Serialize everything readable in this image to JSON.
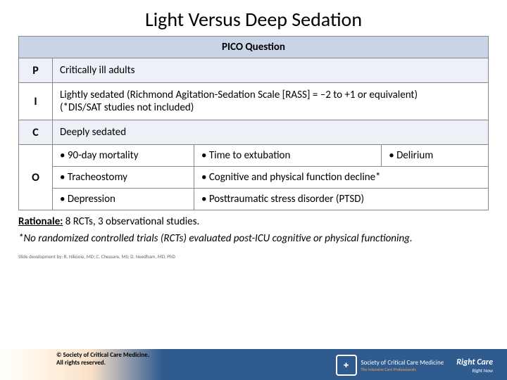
{
  "title": "Light Versus Deep Sedation",
  "table": {
    "header": "PICO Question",
    "rows": {
      "P": {
        "letter": "P",
        "text": "Critically ill adults"
      },
      "I": {
        "letter": "I",
        "text": "Lightly sedated (Richmond Agitation-Sedation Scale [RASS] = –2 to +1 or equivalent)\n(*DIS/SAT studies not included)"
      },
      "C": {
        "letter": "C",
        "text": "Deeply sedated"
      },
      "O": {
        "letter": "O",
        "grid": [
          [
            "90-day mortality",
            "Time to extubation",
            "Delirium"
          ],
          [
            "Tracheostomy",
            "Cognitive and physical function decline*",
            ""
          ],
          [
            "Depression",
            "Posttraumatic stress disorder (PTSD)",
            ""
          ]
        ]
      }
    }
  },
  "rationale_label": "Rationale:",
  "rationale_text": " 8 RCTs, 3 observational studies.",
  "footnote": "*No randomized controlled trials (RCTs) evaluated post-ICU cognitive or physical functioning.",
  "credit": "Slide development by: R. Nikooie, MD; C. Chessare, MS; D. Needham, MD, PhD",
  "copyright": "© Society of Critical Care Medicine.\nAll rights reserved.",
  "logo1_name": "Society of Critical Care Medicine",
  "logo1_tag": "The Intensive Care Professionals",
  "logo2_big": "Right Care",
  "logo2_sm": "Right Now",
  "colors": {
    "header_bg": "#c9d4e6",
    "alt_bg": "#ecf0f7",
    "border": "#888888",
    "footer_blue": "#2f5b8f"
  }
}
